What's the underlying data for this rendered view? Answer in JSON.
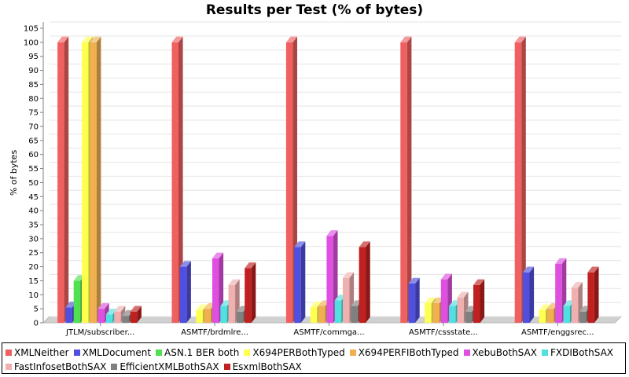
{
  "chart_data": {
    "type": "bar",
    "title": "Results per Test (% of bytes)",
    "ylabel": "% of bytes",
    "xlabel": "",
    "ylim": [
      0,
      105
    ],
    "ytick_step": 5,
    "grid": true,
    "three_d": true,
    "legend_position": "bottom",
    "categories": [
      "JTLM/subscriber...",
      "ASMTF/brdmlre...",
      "ASMTF/commga...",
      "ASMTF/cssstate...",
      "ASMTF/enggsrec..."
    ],
    "series": [
      {
        "name": "XMLNeither",
        "color": "#f06060",
        "values": [
          100,
          100,
          100,
          100,
          100
        ]
      },
      {
        "name": "XMLDocument",
        "color": "#5050e0",
        "values": [
          5.5,
          20,
          27,
          14,
          18
        ]
      },
      {
        "name": "ASN.1 BER both",
        "color": "#50e050",
        "values": [
          15,
          0,
          0,
          0,
          0
        ]
      },
      {
        "name": "X694PERBothTyped",
        "color": "#ffff50",
        "values": [
          100,
          4.5,
          5.5,
          7,
          4.5
        ]
      },
      {
        "name": "X694PERFIBothTyped",
        "color": "#f0b050",
        "values": [
          100,
          5,
          6,
          7,
          5
        ]
      },
      {
        "name": "XebuBothSAX",
        "color": "#e050e0",
        "values": [
          5,
          23,
          31,
          15.5,
          21
        ]
      },
      {
        "name": "FXDIBothSAX",
        "color": "#50e0e0",
        "values": [
          3,
          6,
          8,
          6,
          6
        ]
      },
      {
        "name": "FastInfosetBothSAX",
        "color": "#f0b0b0",
        "values": [
          4,
          13.5,
          16,
          9,
          12.5
        ]
      },
      {
        "name": "EfficientXMLBothSAX",
        "color": "#808080",
        "values": [
          2.5,
          4,
          6,
          4,
          4
        ]
      },
      {
        "name": "EsxmlBothSAX",
        "color": "#c02020",
        "values": [
          4,
          19.5,
          27,
          13.5,
          18
        ]
      }
    ]
  }
}
